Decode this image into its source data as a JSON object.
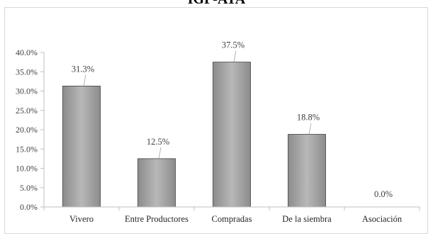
{
  "chart_data": {
    "type": "bar",
    "title": "IGP-ATA",
    "categories": [
      "Vivero",
      "Entre Productores",
      "Compradas",
      "De la siembra",
      "Asociación"
    ],
    "values": [
      31.3,
      12.5,
      37.5,
      18.8,
      0.0
    ],
    "data_labels": [
      "31.3%",
      "12.5%",
      "37.5%",
      "18.8%",
      "0.0%"
    ],
    "y_ticks": [
      "0.0%",
      "5.0%",
      "10.0%",
      "15.0%",
      "20.0%",
      "25.0%",
      "30.0%",
      "35.0%",
      "40.0%"
    ],
    "ylim": [
      0,
      40
    ],
    "xlabel": "",
    "ylabel": "",
    "grid": false,
    "legend": "none",
    "bar_color": "#a6a6a6",
    "bar_edge_color": "#3f3f3f",
    "axis_color": "#bfbfbf"
  }
}
